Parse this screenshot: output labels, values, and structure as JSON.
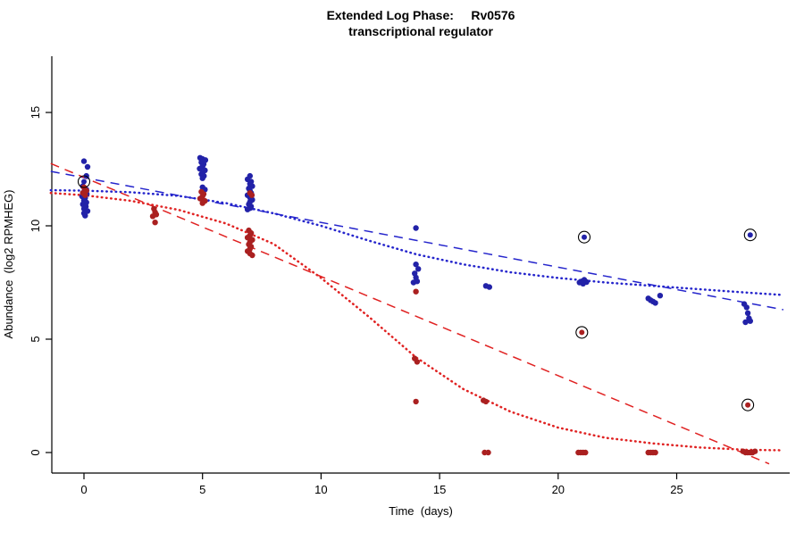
{
  "chart_data": {
    "type": "scatter",
    "title": "Extended Log Phase:     Rv0576",
    "subtitle": "transcriptional regulator",
    "xlabel": "Time  (days)",
    "ylabel": "Abundance  (log2 RPMHEG)",
    "xlim": [
      -1.4,
      29.8
    ],
    "ylim": [
      -0.6,
      17.5
    ],
    "x_ticks": [
      0,
      5,
      10,
      15,
      20,
      25
    ],
    "y_ticks": [
      0,
      5,
      10,
      15
    ],
    "grid": false,
    "legend": "none",
    "colors": {
      "point_blue": "#2222a8",
      "point_red": "#aa2020",
      "line_blue": "#2525cc",
      "line_red": "#e02222",
      "circle_outline": "#000000",
      "axis": "#000000"
    },
    "series": [
      {
        "name": "blue-points",
        "color": "blue",
        "marker": "filled-circle",
        "points": [
          [
            0,
            12.85
          ],
          [
            0.15,
            12.6
          ],
          [
            0.1,
            12.2
          ],
          [
            -0.05,
            11.75
          ],
          [
            0.1,
            11.6
          ],
          [
            0,
            11.5
          ],
          [
            0.12,
            11.4
          ],
          [
            -0.08,
            11.3
          ],
          [
            0.05,
            11.22
          ],
          [
            0,
            11.12
          ],
          [
            0.1,
            11.03
          ],
          [
            -0.05,
            10.95
          ],
          [
            0.08,
            10.85
          ],
          [
            0,
            10.75
          ],
          [
            0.15,
            10.65
          ],
          [
            0,
            10.55
          ],
          [
            0.05,
            10.45
          ],
          [
            4.9,
            13.0
          ],
          [
            5.0,
            12.95
          ],
          [
            5.12,
            12.9
          ],
          [
            4.95,
            12.8
          ],
          [
            5.05,
            12.72
          ],
          [
            5.0,
            12.62
          ],
          [
            4.88,
            12.52
          ],
          [
            5.1,
            12.45
          ],
          [
            5.0,
            12.35
          ],
          [
            4.95,
            12.28
          ],
          [
            5.06,
            12.2
          ],
          [
            5.0,
            12.1
          ],
          [
            5.0,
            11.7
          ],
          [
            5.1,
            11.6
          ],
          [
            7.0,
            12.2
          ],
          [
            6.9,
            12.05
          ],
          [
            7.05,
            11.95
          ],
          [
            7.0,
            11.85
          ],
          [
            7.1,
            11.75
          ],
          [
            6.95,
            11.65
          ],
          [
            7.0,
            11.55
          ],
          [
            7.05,
            11.45
          ],
          [
            6.9,
            11.35
          ],
          [
            7.0,
            11.25
          ],
          [
            7.1,
            11.15
          ],
          [
            7.0,
            11.05
          ],
          [
            6.95,
            10.95
          ],
          [
            7.05,
            10.85
          ],
          [
            7.0,
            10.78
          ],
          [
            6.9,
            10.72
          ],
          [
            14.0,
            9.9
          ],
          [
            14.0,
            8.3
          ],
          [
            14.1,
            8.1
          ],
          [
            13.95,
            7.9
          ],
          [
            14.0,
            7.72
          ],
          [
            14.05,
            7.55
          ],
          [
            13.9,
            7.5
          ],
          [
            16.95,
            7.35
          ],
          [
            17.1,
            7.3
          ],
          [
            20.9,
            7.5
          ],
          [
            21.0,
            7.55
          ],
          [
            21.1,
            7.62
          ],
          [
            21.2,
            7.52
          ],
          [
            21.05,
            7.45
          ],
          [
            23.8,
            6.8
          ],
          [
            23.9,
            6.72
          ],
          [
            24.0,
            6.66
          ],
          [
            24.1,
            6.6
          ],
          [
            24.3,
            6.92
          ],
          [
            27.85,
            6.55
          ],
          [
            27.95,
            6.4
          ],
          [
            28.0,
            6.15
          ],
          [
            28.05,
            5.92
          ],
          [
            28.1,
            5.8
          ],
          [
            27.9,
            5.75
          ]
        ]
      },
      {
        "name": "red-points",
        "color": "red",
        "marker": "filled-circle",
        "points": [
          [
            0,
            11.7
          ],
          [
            0.1,
            11.55
          ],
          [
            -0.05,
            11.45
          ],
          [
            0.05,
            11.35
          ],
          [
            2.95,
            10.75
          ],
          [
            3.0,
            10.6
          ],
          [
            3.05,
            10.5
          ],
          [
            2.9,
            10.42
          ],
          [
            3.0,
            10.15
          ],
          [
            4.95,
            11.5
          ],
          [
            5.05,
            11.4
          ],
          [
            5.0,
            11.3
          ],
          [
            4.9,
            11.2
          ],
          [
            5.1,
            11.1
          ],
          [
            5.0,
            11.0
          ],
          [
            7.0,
            11.45
          ],
          [
            7.08,
            11.35
          ],
          [
            6.95,
            9.8
          ],
          [
            7.05,
            9.68
          ],
          [
            7.0,
            9.58
          ],
          [
            6.9,
            9.48
          ],
          [
            7.1,
            9.38
          ],
          [
            7.0,
            9.28
          ],
          [
            6.95,
            9.18
          ],
          [
            7.05,
            9.08
          ],
          [
            7.0,
            8.98
          ],
          [
            6.9,
            8.88
          ],
          [
            7.0,
            8.78
          ],
          [
            7.1,
            8.7
          ],
          [
            14.0,
            7.1
          ],
          [
            13.95,
            4.15
          ],
          [
            14.05,
            4.0
          ],
          [
            14.0,
            2.25
          ],
          [
            16.85,
            2.3
          ],
          [
            16.95,
            2.25
          ],
          [
            16.9,
            0
          ],
          [
            17.05,
            0
          ],
          [
            20.85,
            0
          ],
          [
            20.95,
            0
          ],
          [
            21.05,
            0
          ],
          [
            21.15,
            0
          ],
          [
            23.8,
            0
          ],
          [
            23.9,
            0
          ],
          [
            24.0,
            0
          ],
          [
            24.1,
            0
          ],
          [
            27.8,
            0.05
          ],
          [
            27.9,
            0
          ],
          [
            28.0,
            0
          ],
          [
            28.1,
            0
          ],
          [
            28.2,
            0
          ],
          [
            28.3,
            0.05
          ]
        ]
      }
    ],
    "circled_points": [
      {
        "x": 0.0,
        "y": 11.95,
        "color": "blue"
      },
      {
        "x": 21.1,
        "y": 9.5,
        "color": "blue"
      },
      {
        "x": 28.1,
        "y": 9.6,
        "color": "blue"
      },
      {
        "x": 21.0,
        "y": 5.3,
        "color": "red"
      },
      {
        "x": 28.0,
        "y": 2.1,
        "color": "red"
      }
    ],
    "curves": [
      {
        "name": "blue-dashed-fit",
        "color": "blue",
        "style": "dashed",
        "points": [
          [
            -1.4,
            12.4
          ],
          [
            29.5,
            6.3
          ]
        ]
      },
      {
        "name": "blue-dotted-fit",
        "color": "blue",
        "style": "dotted",
        "points": [
          [
            -1.4,
            11.57
          ],
          [
            0,
            11.55
          ],
          [
            2,
            11.48
          ],
          [
            4,
            11.32
          ],
          [
            6,
            11.0
          ],
          [
            8,
            10.55
          ],
          [
            10,
            10.0
          ],
          [
            12,
            9.35
          ],
          [
            14,
            8.75
          ],
          [
            16,
            8.3
          ],
          [
            18,
            7.95
          ],
          [
            20,
            7.7
          ],
          [
            22,
            7.5
          ],
          [
            24,
            7.35
          ],
          [
            26,
            7.2
          ],
          [
            28,
            7.05
          ],
          [
            29.5,
            6.95
          ]
        ]
      },
      {
        "name": "red-dashed-fit",
        "color": "red",
        "style": "dashed",
        "points": [
          [
            -1.4,
            12.75
          ],
          [
            28.9,
            -0.5
          ]
        ]
      },
      {
        "name": "red-dotted-fit",
        "color": "red",
        "style": "dotted",
        "points": [
          [
            -1.4,
            11.45
          ],
          [
            0,
            11.35
          ],
          [
            2,
            11.1
          ],
          [
            4,
            10.7
          ],
          [
            6,
            10.1
          ],
          [
            8,
            9.2
          ],
          [
            10,
            7.7
          ],
          [
            12,
            6.0
          ],
          [
            14,
            4.2
          ],
          [
            16,
            2.8
          ],
          [
            18,
            1.8
          ],
          [
            20,
            1.1
          ],
          [
            22,
            0.65
          ],
          [
            24,
            0.4
          ],
          [
            26,
            0.22
          ],
          [
            28,
            0.12
          ],
          [
            29.5,
            0.1
          ]
        ]
      }
    ]
  }
}
